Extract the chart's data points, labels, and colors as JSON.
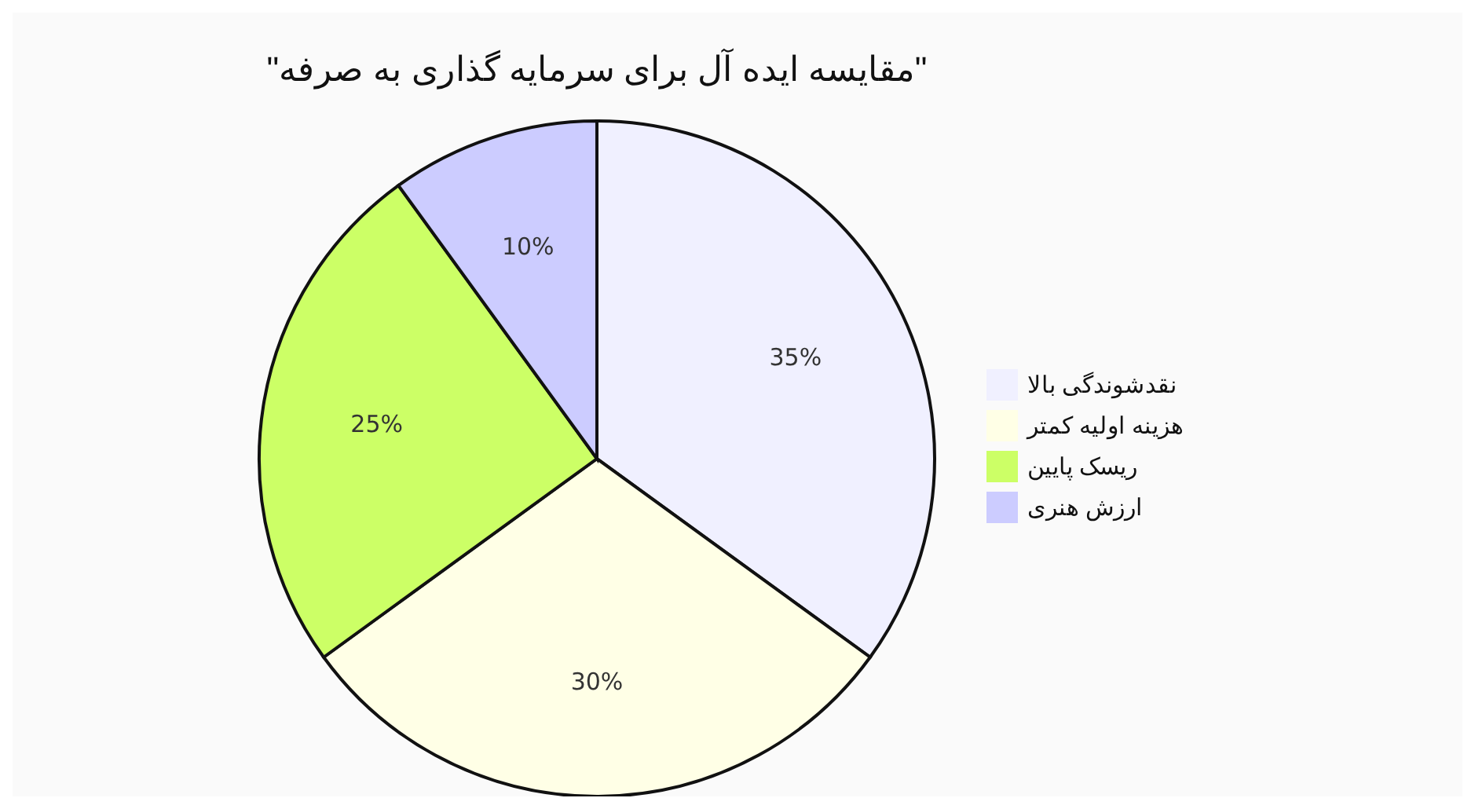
{
  "chart_data": {
    "type": "pie",
    "title": "\"مقایسه ایده آل برای سرمایه گذاری به صرفه\"",
    "categories": [
      "نقدشوندگی بالا",
      "هزینه اولیه کمتر",
      "ریسک پایین",
      "ارزش هنری"
    ],
    "values": [
      35,
      30,
      25,
      10
    ],
    "value_labels": [
      "35%",
      "30%",
      "25%",
      "10%"
    ],
    "colors": [
      "#f0f0ff",
      "#ffffe6",
      "#ccff66",
      "#ccccff"
    ],
    "legend": "right"
  }
}
